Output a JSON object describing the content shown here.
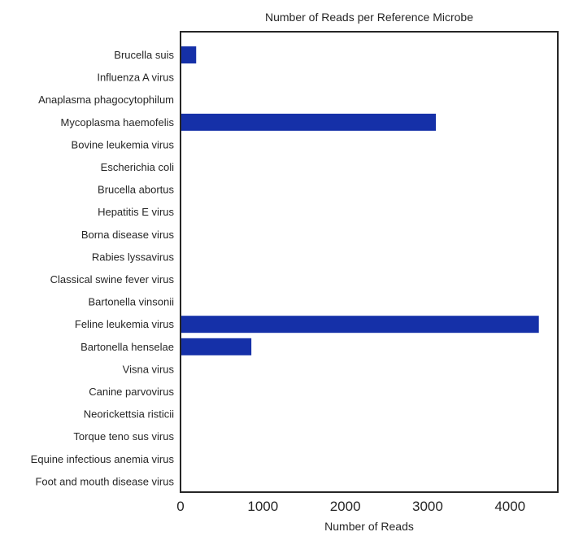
{
  "chart_data": {
    "type": "bar",
    "orientation": "horizontal",
    "title": "Number of Reads per Reference Microbe",
    "xlabel": "Number of Reads",
    "ylabel": "",
    "xlim": [
      0,
      4580
    ],
    "xticks": [
      0,
      1000,
      2000,
      3000,
      4000
    ],
    "grid": false,
    "bar_color": "#1530a8",
    "categories": [
      "Brucella suis",
      "Influenza A virus",
      "Anaplasma phagocytophilum",
      "Mycoplasma haemofelis",
      "Bovine leukemia virus",
      "Escherichia coli",
      "Brucella abortus",
      "Hepatitis E virus",
      "Borna disease virus",
      "Rabies lyssavirus",
      "Classical swine fever virus",
      "Bartonella vinsonii",
      "Feline leukemia virus",
      "Bartonella henselae",
      "Visna virus",
      "Canine parvovirus",
      "Neorickettsia risticii",
      "Torque teno sus virus",
      "Equine infectious anemia virus",
      "Foot and mouth disease virus"
    ],
    "values": [
      190,
      2,
      2,
      3100,
      2,
      2,
      2,
      2,
      2,
      2,
      2,
      2,
      4350,
      860,
      2,
      2,
      2,
      2,
      2,
      2
    ]
  }
}
